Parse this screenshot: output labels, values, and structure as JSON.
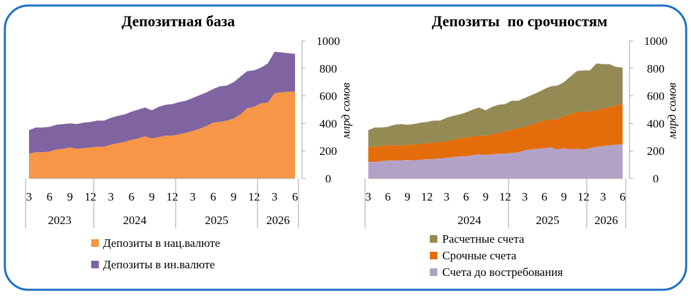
{
  "colors": {
    "frame": "#1f6fc4",
    "national": "#f79646",
    "foreign": "#8064a2",
    "current": "#948a54",
    "term": "#e46c0a",
    "demand": "#b3a2c7",
    "axis": "#a6a6a6"
  },
  "chart_data": [
    {
      "type": "area",
      "stacked": true,
      "title": "Депозитная база",
      "ylabel": "млрд сомов",
      "ylim": [
        0,
        1000
      ],
      "y_ticks": [
        0,
        200,
        400,
        600,
        800,
        1000
      ],
      "y_axis_side": "right",
      "x_months": [
        3,
        4,
        5,
        6,
        7,
        8,
        9,
        10,
        11,
        12,
        1,
        2,
        3,
        4,
        5,
        6,
        7,
        8,
        9,
        10,
        11,
        12,
        1,
        2,
        3,
        4,
        5,
        6,
        7,
        8,
        9,
        10,
        11,
        12,
        1,
        2,
        3,
        4,
        5,
        6
      ],
      "x_tick_labels": [
        "3",
        "6",
        "9",
        "12",
        "3",
        "6",
        "9",
        "12",
        "3",
        "6",
        "9",
        "12",
        "3",
        "6"
      ],
      "x_tick_index": [
        0,
        3,
        6,
        9,
        12,
        15,
        18,
        21,
        24,
        27,
        30,
        33,
        36,
        39
      ],
      "x_groups": [
        {
          "label": "2023",
          "start": 0,
          "end": 9
        },
        {
          "label": "2024",
          "start": 10,
          "end": 21
        },
        {
          "label": "2025",
          "start": 22,
          "end": 33
        },
        {
          "label": "2026",
          "start": 34,
          "end": 39
        }
      ],
      "series": [
        {
          "name": "Депозиты в нац.валюте",
          "color": "#f79646",
          "values": [
            180,
            190,
            190,
            195,
            210,
            215,
            225,
            215,
            220,
            225,
            230,
            230,
            245,
            255,
            265,
            280,
            290,
            305,
            290,
            300,
            310,
            310,
            320,
            330,
            345,
            360,
            380,
            405,
            410,
            420,
            435,
            465,
            510,
            520,
            545,
            550,
            620,
            625,
            630,
            630
          ]
        },
        {
          "name": "Депозиты в ин.валюте",
          "color": "#8064a2",
          "values": [
            170,
            180,
            180,
            180,
            180,
            180,
            175,
            180,
            185,
            185,
            190,
            190,
            195,
            200,
            200,
            205,
            210,
            210,
            205,
            220,
            225,
            230,
            235,
            235,
            240,
            245,
            245,
            245,
            260,
            255,
            265,
            275,
            270,
            265,
            260,
            285,
            300,
            290,
            280,
            275
          ]
        }
      ]
    },
    {
      "type": "area",
      "stacked": true,
      "title": "Депозиты  по срочностям",
      "ylabel": "млрд сомов",
      "ylim": [
        0,
        1000
      ],
      "y_ticks": [
        0,
        200,
        400,
        600,
        800,
        1000
      ],
      "y_axis_side": "right",
      "x_months": [
        3,
        4,
        5,
        6,
        7,
        8,
        9,
        10,
        11,
        12,
        1,
        2,
        3,
        4,
        5,
        6,
        7,
        8,
        9,
        10,
        11,
        12,
        1,
        2,
        3,
        4,
        5,
        6,
        7,
        8,
        9,
        10,
        11,
        12,
        1,
        2,
        3,
        4,
        5,
        6
      ],
      "x_tick_labels": [
        "3",
        "6",
        "9",
        "12",
        "3",
        "6",
        "9",
        "12",
        "3",
        "6",
        "9",
        "12",
        "3",
        "6"
      ],
      "x_tick_index": [
        0,
        3,
        6,
        9,
        12,
        15,
        18,
        21,
        24,
        27,
        30,
        33,
        36,
        39
      ],
      "x_groups": [
        {
          "label": "2024",
          "start": 10,
          "end": 21
        },
        {
          "label": "2025",
          "start": 22,
          "end": 33
        },
        {
          "label": "2026",
          "start": 34,
          "end": 39
        }
      ],
      "series": [
        {
          "name": "Счета до востребования",
          "color": "#b3a2c7",
          "values": [
            120,
            120,
            125,
            130,
            130,
            130,
            135,
            130,
            135,
            140,
            140,
            145,
            150,
            155,
            160,
            160,
            170,
            175,
            170,
            175,
            180,
            180,
            185,
            190,
            205,
            210,
            215,
            220,
            225,
            210,
            220,
            210,
            215,
            210,
            220,
            230,
            235,
            240,
            245,
            250
          ]
        },
        {
          "name": "Срочные счета",
          "color": "#e46c0a",
          "values": [
            110,
            110,
            110,
            110,
            110,
            110,
            110,
            115,
            115,
            115,
            120,
            120,
            120,
            125,
            130,
            135,
            135,
            135,
            140,
            145,
            150,
            160,
            170,
            175,
            170,
            180,
            190,
            200,
            205,
            215,
            235,
            255,
            270,
            270,
            270,
            265,
            270,
            280,
            285,
            290
          ]
        },
        {
          "name": "Расчетные счета",
          "color": "#948a54",
          "values": [
            120,
            140,
            135,
            135,
            150,
            155,
            145,
            150,
            155,
            155,
            160,
            155,
            170,
            175,
            175,
            185,
            195,
            205,
            185,
            200,
            205,
            200,
            210,
            200,
            210,
            215,
            220,
            230,
            240,
            250,
            245,
            275,
            295,
            305,
            295,
            340,
            325,
            310,
            280,
            265
          ]
        }
      ]
    }
  ],
  "legend_left": [
    {
      "label": "Депозиты в нац.валюте",
      "color": "#f79646"
    },
    {
      "label": "Депозиты в ин.валюте",
      "color": "#8064a2"
    }
  ],
  "legend_right": [
    {
      "label": "Расчетные счета",
      "color": "#948a54"
    },
    {
      "label": "Срочные счета",
      "color": "#e46c0a"
    },
    {
      "label": "Счета до востребования",
      "color": "#b3a2c7"
    }
  ]
}
